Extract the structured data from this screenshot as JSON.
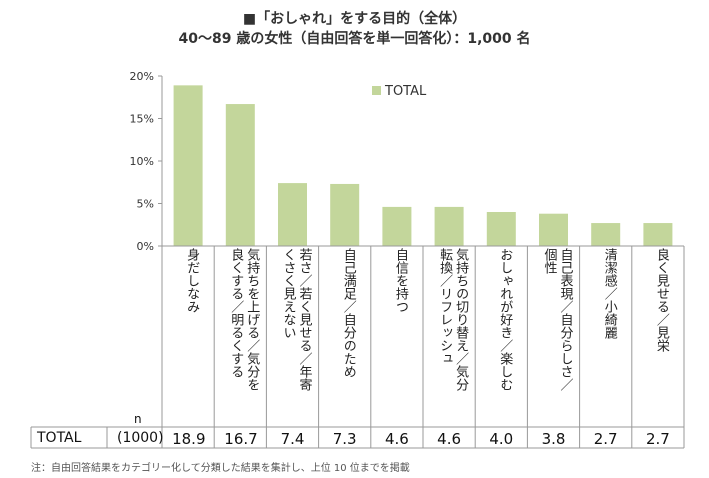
{
  "header": {
    "title_line1": "■「おしゃれ」をする目的（全体）",
    "title_line2": "40～89 歳の女性（自由回答を単一回答化）：1,000 名"
  },
  "chart_data": {
    "type": "bar",
    "title": "「おしゃれ」をする目的（全体）",
    "subtitle": "40～89 歳の女性（自由回答を単一回答化）：1,000 名",
    "categories": [
      "身だしなみ",
      "気持ちを上げる／気分を良くする／明るくする",
      "若さ／若く見せる／年寄くさく見えない",
      "自己満足／自分のため",
      "自信を持つ",
      "気持ちの切り替え／気分転換／リフレッシュ",
      "おしゃれが好き／楽しむ",
      "自己表現／自分らしさ／個性",
      "清潔感／小綺麗",
      "良く見せる／見栄"
    ],
    "category_columns": [
      [
        "身だしなみ"
      ],
      [
        "気持ちを上げる／気分を",
        "良くする／明るくする"
      ],
      [
        "若さ／若く見せる／年寄",
        "くさく見えない"
      ],
      [
        "自己満足／自分のため"
      ],
      [
        "自信を持つ"
      ],
      [
        "気持ちの切り替え／気分",
        "転換／リフレッシュ"
      ],
      [
        "おしゃれが好き／楽しむ"
      ],
      [
        "自己表現／自分らしさ／",
        "個性"
      ],
      [
        "清潔感／小綺麗"
      ],
      [
        "良く見せる／見栄"
      ]
    ],
    "series": [
      {
        "name": "TOTAL",
        "values": [
          18.9,
          16.7,
          7.4,
          7.3,
          4.6,
          4.6,
          4.0,
          3.8,
          2.7,
          2.7
        ]
      }
    ],
    "value_labels": [
      "18.9",
      "16.7",
      "7.4",
      "7.3",
      "4.6",
      "4.6",
      "4.0",
      "3.8",
      "2.7",
      "2.7"
    ],
    "ylim": [
      0,
      20
    ],
    "yticks": [
      0,
      5,
      10,
      15,
      20
    ],
    "ytick_labels": [
      "0%",
      "5%",
      "10%",
      "15%",
      "20%"
    ],
    "legend": "top-center",
    "color": "#c3d69b"
  },
  "table": {
    "n_header": "n",
    "row_label": "TOTAL",
    "n_value": "(1000)"
  },
  "footnote": "注：自由回答結果をカテゴリー化して分類した結果を集計し、上位 10 位までを掲載"
}
